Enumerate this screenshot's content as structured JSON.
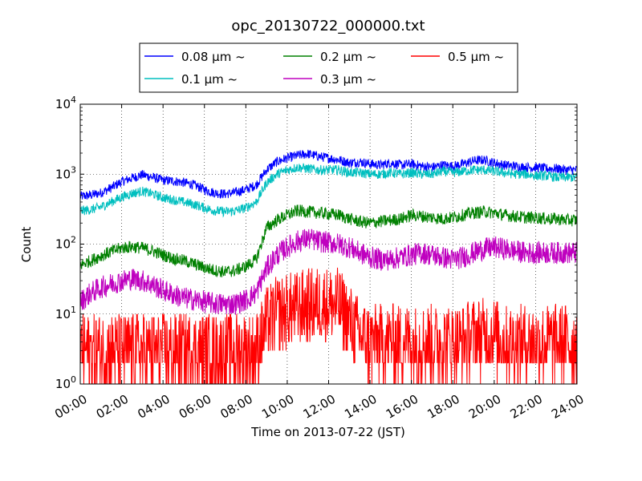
{
  "chart_data": {
    "type": "line",
    "title": "opc_20130722_000000.txt",
    "xlabel": "Time on 2013-07-22 (JST)",
    "ylabel": "Count",
    "y_scale": "log",
    "ylim": [
      1,
      10000
    ],
    "xlim": [
      "00:00",
      "24:00"
    ],
    "x_ticks": [
      "00:00",
      "02:00",
      "04:00",
      "06:00",
      "08:00",
      "10:00",
      "12:00",
      "14:00",
      "16:00",
      "18:00",
      "20:00",
      "22:00",
      "24:00"
    ],
    "y_ticks": [
      {
        "base": "10",
        "exp": "0"
      },
      {
        "base": "10",
        "exp": "1"
      },
      {
        "base": "10",
        "exp": "2"
      },
      {
        "base": "10",
        "exp": "3"
      },
      {
        "base": "10",
        "exp": "4"
      }
    ],
    "grid": true,
    "grid_style": "dotted",
    "legend": {
      "placement": "top-center",
      "ncol": 3
    },
    "x_hours": [
      0,
      0.5,
      1,
      1.5,
      2,
      2.5,
      3,
      3.5,
      4,
      4.5,
      5,
      5.5,
      6,
      6.5,
      7,
      7.5,
      8,
      8.5,
      9,
      9.5,
      10,
      10.5,
      11,
      11.5,
      12,
      12.5,
      13,
      13.5,
      14,
      14.5,
      15,
      15.5,
      16,
      16.5,
      17,
      17.5,
      18,
      18.5,
      19,
      19.5,
      20,
      20.5,
      21,
      21.5,
      22,
      22.5,
      23,
      23.5,
      24
    ],
    "series": [
      {
        "name": "0.08 μm ~",
        "color": "#0000ff",
        "noise": 0.07,
        "values": [
          480,
          500,
          540,
          640,
          780,
          880,
          980,
          900,
          820,
          800,
          760,
          700,
          600,
          540,
          520,
          550,
          600,
          700,
          1150,
          1500,
          1700,
          1850,
          1950,
          1800,
          1700,
          1600,
          1450,
          1500,
          1400,
          1350,
          1450,
          1350,
          1400,
          1300,
          1250,
          1350,
          1300,
          1400,
          1550,
          1600,
          1450,
          1350,
          1300,
          1250,
          1250,
          1200,
          1200,
          1150,
          1150
        ]
      },
      {
        "name": "0.1 μm ~",
        "color": "#00bfbf",
        "noise": 0.07,
        "values": [
          300,
          310,
          340,
          400,
          470,
          530,
          570,
          520,
          460,
          430,
          400,
          370,
          330,
          300,
          290,
          300,
          330,
          400,
          750,
          1000,
          1150,
          1250,
          1200,
          1150,
          1150,
          1150,
          1050,
          1050,
          1000,
          1000,
          1050,
          1000,
          1050,
          1000,
          1000,
          1100,
          1050,
          1100,
          1150,
          1150,
          1100,
          1050,
          1000,
          1000,
          950,
          950,
          900,
          900,
          900
        ]
      },
      {
        "name": "0.2 μm ~",
        "color": "#008000",
        "noise": 0.09,
        "values": [
          50,
          58,
          68,
          78,
          88,
          92,
          88,
          80,
          70,
          62,
          58,
          52,
          46,
          42,
          40,
          42,
          48,
          60,
          170,
          220,
          260,
          300,
          290,
          280,
          270,
          260,
          230,
          210,
          200,
          210,
          220,
          230,
          260,
          250,
          240,
          230,
          240,
          260,
          280,
          290,
          280,
          260,
          250,
          240,
          240,
          230,
          230,
          220,
          220
        ]
      },
      {
        "name": "0.3 μm ~",
        "color": "#bf00bf",
        "noise": 0.16,
        "values": [
          15,
          20,
          24,
          27,
          30,
          32,
          30,
          26,
          22,
          19,
          17,
          16,
          15,
          14,
          14,
          14,
          16,
          20,
          45,
          70,
          90,
          110,
          120,
          110,
          105,
          100,
          90,
          75,
          65,
          60,
          60,
          65,
          70,
          75,
          70,
          65,
          60,
          65,
          75,
          85,
          90,
          85,
          80,
          75,
          75,
          75,
          75,
          75,
          75
        ]
      },
      {
        "name": "0.5 μm ~",
        "color": "#ff0000",
        "noise": 0.55,
        "values": [
          3,
          3,
          3,
          3,
          3,
          3,
          3,
          3,
          3,
          3,
          3,
          3,
          3,
          3,
          3,
          3,
          3,
          3,
          7,
          10,
          11,
          12,
          13,
          14,
          14,
          13,
          8,
          5,
          4,
          4,
          4,
          4,
          4,
          4,
          4,
          4,
          4,
          4,
          5,
          5,
          5,
          4,
          4,
          4,
          4,
          4,
          4,
          4,
          4
        ]
      }
    ]
  }
}
